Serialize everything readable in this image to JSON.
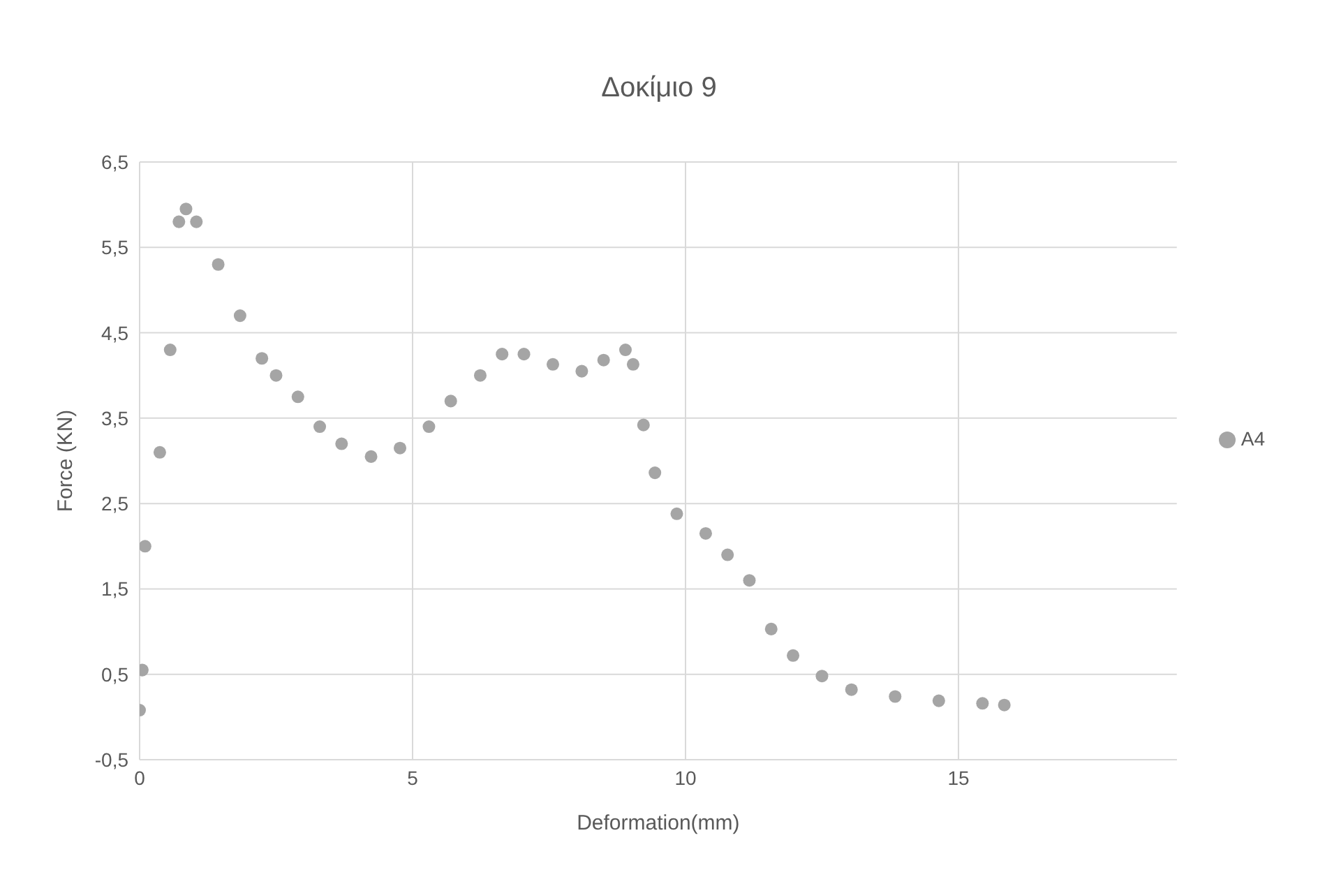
{
  "chart_data": {
    "type": "scatter",
    "title": "Δοκίμιο 9",
    "xlabel": "Deformation(mm)",
    "ylabel": "Force (KN)",
    "xlim": [
      0,
      19
    ],
    "xticks": [
      0,
      5,
      10,
      15
    ],
    "ylim": [
      -0.5,
      6.5
    ],
    "yticks": [
      {
        "value": -0.5,
        "label": "-0,5"
      },
      {
        "value": 0.5,
        "label": "0,5"
      },
      {
        "value": 1.5,
        "label": "1,5"
      },
      {
        "value": 2.5,
        "label": "2,5"
      },
      {
        "value": 3.5,
        "label": "3,5"
      },
      {
        "value": 4.5,
        "label": "4,5"
      },
      {
        "value": 5.5,
        "label": "5,5"
      },
      {
        "value": 6.5,
        "label": "6,5"
      }
    ],
    "grid": true,
    "legend": "right",
    "marker": "circle",
    "series": [
      {
        "name": "A4",
        "color": "#a5a5a5",
        "x": [
          0,
          0.05,
          0.1,
          0.37,
          0.56,
          0.72,
          0.85,
          1.04,
          1.44,
          1.84,
          2.24,
          2.5,
          2.9,
          3.3,
          3.7,
          4.24,
          4.77,
          5.3,
          5.7,
          6.24,
          6.64,
          7.04,
          7.57,
          8.1,
          8.5,
          8.9,
          9.04,
          9.23,
          9.44,
          9.84,
          10.37,
          10.77,
          11.17,
          11.57,
          11.97,
          12.5,
          13.04,
          13.84,
          14.64,
          15.44,
          15.84
        ],
        "values": [
          0.08,
          0.55,
          2.0,
          3.1,
          4.3,
          5.8,
          5.95,
          5.8,
          5.3,
          4.7,
          4.2,
          4.0,
          3.75,
          3.4,
          3.2,
          3.05,
          3.15,
          3.4,
          3.7,
          4.0,
          4.25,
          4.25,
          4.13,
          4.05,
          4.18,
          4.3,
          4.13,
          3.42,
          2.86,
          2.38,
          2.15,
          1.9,
          1.6,
          1.03,
          0.72,
          0.48,
          0.32,
          0.24,
          0.19,
          0.16,
          0.14
        ]
      }
    ]
  }
}
